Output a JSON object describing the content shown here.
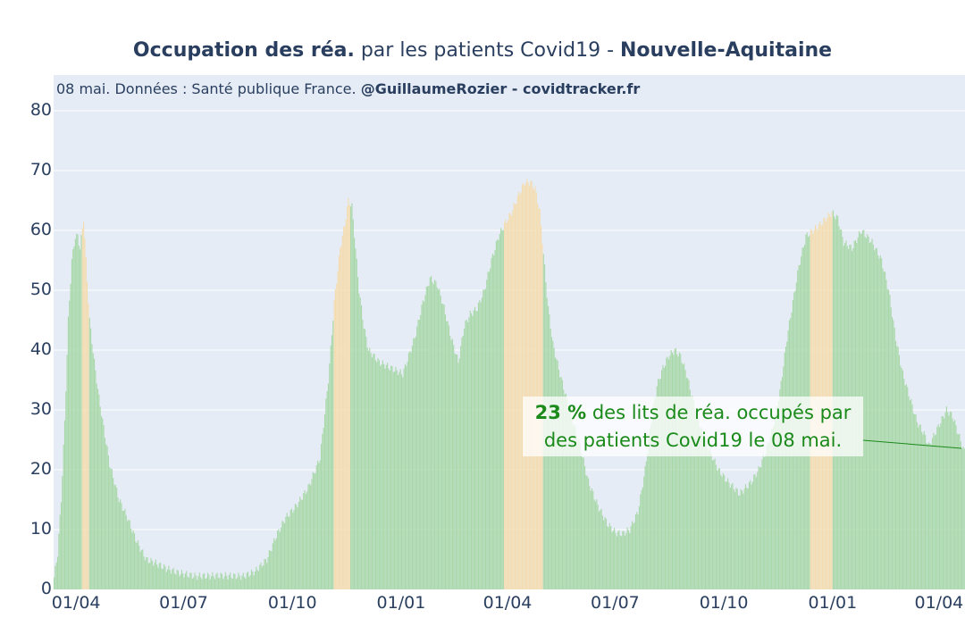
{
  "title": {
    "bold_part": "Occupation des réa.",
    "middle_part": " par les patients Covid19 - ",
    "region": "Nouvelle-Aquitaine"
  },
  "subtitle": {
    "text": "08 mai. Données : Santé publique France. ",
    "credit": "@GuillaumeRozier - covidtracker.fr"
  },
  "annotation": {
    "percent": "23  %",
    "line1_rest": " des lits de réa. occupés par",
    "line2": "des patients Covid19 le 08 mai."
  },
  "colors": {
    "plot_background": "#e5ecf6",
    "normal_bar": "#a8d8a8",
    "highlight_bar": "#f5dcae",
    "annotation_text": "#1a8a1a",
    "grid": "#ffffff"
  },
  "chart_data": {
    "type": "bar",
    "ylim": [
      0,
      80
    ],
    "y_ticks": [
      "0",
      "10",
      "20",
      "30",
      "40",
      "50",
      "60",
      "70",
      "80"
    ],
    "x_ticks": [
      "01/04",
      "01/07",
      "01/10",
      "01/01",
      "01/04",
      "01/07",
      "01/10",
      "01/01",
      "01/04"
    ],
    "x_range_days": [
      0,
      771
    ],
    "x_tick_days": [
      19,
      110,
      202,
      294,
      384,
      475,
      567,
      659,
      749
    ],
    "series": [
      {
        "values_by_day": [
          [
            0,
            2
          ],
          [
            3,
            6
          ],
          [
            6,
            15
          ],
          [
            9,
            28
          ],
          [
            12,
            45
          ],
          [
            15,
            55
          ],
          [
            18,
            59
          ],
          [
            20,
            59
          ],
          [
            22,
            57
          ],
          [
            25,
            62
          ],
          [
            27,
            55
          ],
          [
            30,
            45
          ],
          [
            34,
            38
          ],
          [
            38,
            32
          ],
          [
            42,
            27
          ],
          [
            47,
            21
          ],
          [
            55,
            15
          ],
          [
            62,
            12
          ],
          [
            70,
            8
          ],
          [
            78,
            5
          ],
          [
            85,
            4.5
          ],
          [
            95,
            3.5
          ],
          [
            105,
            2.8
          ],
          [
            120,
            2.2
          ],
          [
            140,
            2.3
          ],
          [
            160,
            2.2
          ],
          [
            170,
            3
          ],
          [
            180,
            5
          ],
          [
            188,
            9
          ],
          [
            196,
            12
          ],
          [
            205,
            14
          ],
          [
            215,
            17
          ],
          [
            225,
            22
          ],
          [
            232,
            35
          ],
          [
            237,
            48
          ],
          [
            242,
            57
          ],
          [
            246,
            61
          ],
          [
            249,
            65
          ],
          [
            252,
            64
          ],
          [
            255,
            57
          ],
          [
            258,
            50
          ],
          [
            262,
            44
          ],
          [
            266,
            40
          ],
          [
            275,
            38
          ],
          [
            285,
            37
          ],
          [
            295,
            36
          ],
          [
            305,
            42
          ],
          [
            312,
            48
          ],
          [
            318,
            52
          ],
          [
            324,
            51
          ],
          [
            330,
            47
          ],
          [
            336,
            42
          ],
          [
            342,
            38
          ],
          [
            347,
            44
          ],
          [
            352,
            46
          ],
          [
            358,
            47
          ],
          [
            364,
            50
          ],
          [
            370,
            55
          ],
          [
            376,
            59
          ],
          [
            381,
            61
          ],
          [
            387,
            63
          ],
          [
            393,
            66
          ],
          [
            398,
            68
          ],
          [
            403,
            68
          ],
          [
            407,
            67
          ],
          [
            411,
            63
          ],
          [
            414,
            56
          ],
          [
            418,
            47
          ],
          [
            422,
            41
          ],
          [
            428,
            36
          ],
          [
            436,
            30
          ],
          [
            445,
            24
          ],
          [
            452,
            18
          ],
          [
            460,
            14
          ],
          [
            468,
            11
          ],
          [
            475,
            9.5
          ],
          [
            481,
            9.3
          ],
          [
            487,
            10
          ],
          [
            494,
            13
          ],
          [
            500,
            20
          ],
          [
            505,
            28
          ],
          [
            510,
            34
          ],
          [
            515,
            37
          ],
          [
            520,
            39
          ],
          [
            525,
            40
          ],
          [
            530,
            39
          ],
          [
            535,
            36
          ],
          [
            540,
            32
          ],
          [
            547,
            27
          ],
          [
            555,
            23
          ],
          [
            562,
            20
          ],
          [
            570,
            18
          ],
          [
            580,
            16
          ],
          [
            585,
            17
          ],
          [
            590,
            18
          ],
          [
            596,
            20
          ],
          [
            602,
            23
          ],
          [
            608,
            27
          ],
          [
            614,
            33
          ],
          [
            620,
            42
          ],
          [
            625,
            48
          ],
          [
            630,
            54
          ],
          [
            636,
            59
          ],
          [
            642,
            60
          ],
          [
            648,
            61
          ],
          [
            653,
            62
          ],
          [
            658,
            63
          ],
          [
            663,
            62
          ],
          [
            668,
            58
          ],
          [
            675,
            57
          ],
          [
            683,
            60
          ],
          [
            692,
            58
          ],
          [
            700,
            55
          ],
          [
            706,
            50
          ],
          [
            712,
            42
          ],
          [
            718,
            36
          ],
          [
            724,
            32
          ],
          [
            730,
            28
          ],
          [
            736,
            26
          ],
          [
            740,
            24
          ],
          [
            745,
            26
          ],
          [
            750,
            28
          ],
          [
            755,
            30
          ],
          [
            760,
            29
          ],
          [
            765,
            26
          ],
          [
            770,
            23
          ]
        ],
        "highlight_periods_days": [
          [
            24,
            29
          ],
          [
            237,
            250
          ],
          [
            381,
            413
          ],
          [
            640,
            658
          ]
        ]
      }
    ]
  }
}
